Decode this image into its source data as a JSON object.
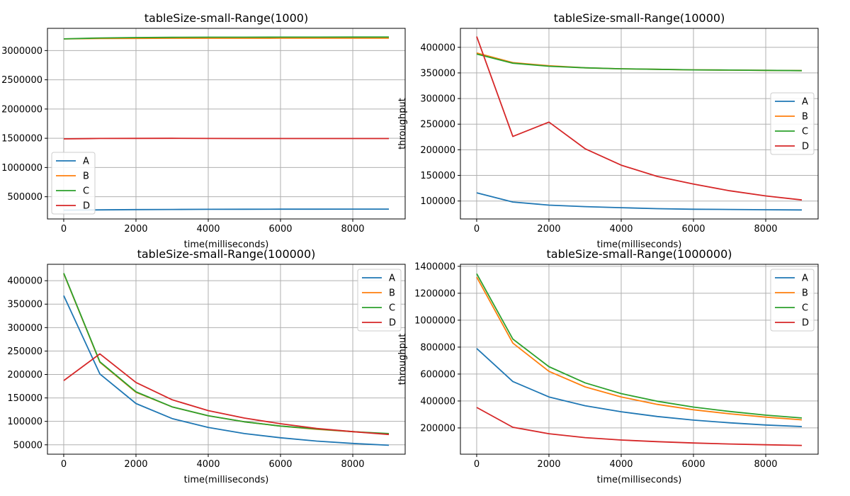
{
  "chart_data": [
    {
      "type": "line",
      "title": "tableSize-small-Range(1000)",
      "xlabel": "time(milliseconds)",
      "ylabel": "",
      "legend": "lower-left",
      "grid": true,
      "xlim": [
        -450,
        9450
      ],
      "ylim": [
        120000,
        3380000
      ],
      "xticks": [
        0,
        2000,
        4000,
        6000,
        8000
      ],
      "xtick_labels": [
        "0",
        "2000",
        "4000",
        "6000",
        "8000"
      ],
      "yticks": [
        500000,
        1000000,
        1500000,
        2000000,
        2500000,
        3000000
      ],
      "ytick_labels": [
        "500000",
        "1000000",
        "1500000",
        "2000000",
        "2500000",
        "3000000"
      ],
      "x": [
        0,
        1000,
        2000,
        3000,
        4000,
        5000,
        6000,
        7000,
        8000,
        9000
      ],
      "series": [
        {
          "name": "A",
          "values": [
            270000,
            275000,
            280000,
            283000,
            285000,
            286000,
            287000,
            287000,
            288000,
            288000
          ]
        },
        {
          "name": "B",
          "values": [
            3200000,
            3205000,
            3208000,
            3210000,
            3210000,
            3210000,
            3211000,
            3211000,
            3211000,
            3211000
          ]
        },
        {
          "name": "C",
          "values": [
            3200000,
            3215000,
            3222000,
            3226000,
            3228000,
            3229000,
            3230000,
            3230000,
            3231000,
            3231000
          ]
        },
        {
          "name": "D",
          "values": [
            1490000,
            1497000,
            1498000,
            1499000,
            1497000,
            1496000,
            1496000,
            1496000,
            1496000,
            1496000
          ]
        }
      ]
    },
    {
      "type": "line",
      "title": "tableSize-small-Range(10000)",
      "xlabel": "time(milliseconds)",
      "ylabel": "throughput",
      "legend": "center-right",
      "grid": true,
      "xlim": [
        -450,
        9450
      ],
      "ylim": [
        65000,
        437000
      ],
      "xticks": [
        0,
        2000,
        4000,
        6000,
        8000
      ],
      "xtick_labels": [
        "0",
        "2000",
        "4000",
        "6000",
        "8000"
      ],
      "yticks": [
        100000,
        150000,
        200000,
        250000,
        300000,
        350000,
        400000
      ],
      "ytick_labels": [
        "100000",
        "150000",
        "200000",
        "250000",
        "300000",
        "350000",
        "400000"
      ],
      "x": [
        0,
        1000,
        2000,
        3000,
        4000,
        5000,
        6000,
        7000,
        8000,
        9000
      ],
      "series": [
        {
          "name": "A",
          "values": [
            116000,
            98000,
            92000,
            89000,
            87000,
            85000,
            84000,
            83500,
            83000,
            82500
          ]
        },
        {
          "name": "B",
          "values": [
            389000,
            370000,
            364000,
            360000,
            358000,
            357000,
            356000,
            355500,
            355000,
            354500
          ]
        },
        {
          "name": "C",
          "values": [
            387000,
            369000,
            363000,
            360000,
            358000,
            357000,
            356000,
            355500,
            355000,
            354500
          ]
        },
        {
          "name": "D",
          "values": [
            421000,
            226000,
            254000,
            202000,
            170000,
            148000,
            133000,
            120000,
            110000,
            102000
          ]
        }
      ]
    },
    {
      "type": "line",
      "title": "tableSize-small-Range(100000)",
      "xlabel": "time(milliseconds)",
      "ylabel": "",
      "legend": "upper-right",
      "grid": true,
      "xlim": [
        -450,
        9450
      ],
      "ylim": [
        30000,
        435000
      ],
      "xticks": [
        0,
        2000,
        4000,
        6000,
        8000
      ],
      "xtick_labels": [
        "0",
        "2000",
        "4000",
        "6000",
        "8000"
      ],
      "yticks": [
        50000,
        100000,
        150000,
        200000,
        250000,
        300000,
        350000,
        400000
      ],
      "ytick_labels": [
        "50000",
        "100000",
        "150000",
        "200000",
        "250000",
        "300000",
        "350000",
        "400000"
      ],
      "x": [
        0,
        1000,
        2000,
        3000,
        4000,
        5000,
        6000,
        7000,
        8000,
        9000
      ],
      "series": [
        {
          "name": "A",
          "values": [
            368000,
            201000,
            138000,
            106000,
            87000,
            74000,
            65000,
            58000,
            53000,
            49000
          ]
        },
        {
          "name": "B",
          "values": [
            415000,
            226000,
            162000,
            131000,
            112000,
            99000,
            90000,
            83000,
            78000,
            73000
          ]
        },
        {
          "name": "C",
          "values": [
            416000,
            227000,
            163000,
            131000,
            112000,
            99000,
            90000,
            84000,
            78000,
            74000
          ]
        },
        {
          "name": "D",
          "values": [
            187000,
            244000,
            183000,
            146000,
            123000,
            107000,
            95000,
            85000,
            78000,
            72000
          ]
        }
      ]
    },
    {
      "type": "line",
      "title": "tableSize-small-Range(1000000)",
      "xlabel": "time(milliseconds)",
      "ylabel": "throughput",
      "legend": "upper-right",
      "grid": true,
      "xlim": [
        -450,
        9450
      ],
      "ylim": [
        5000,
        1415000
      ],
      "xticks": [
        0,
        2000,
        4000,
        6000,
        8000
      ],
      "xtick_labels": [
        "0",
        "2000",
        "4000",
        "6000",
        "8000"
      ],
      "yticks": [
        200000,
        400000,
        600000,
        800000,
        1000000,
        1200000,
        1400000
      ],
      "ytick_labels": [
        "200000",
        "400000",
        "600000",
        "800000",
        "1000000",
        "1200000",
        "1400000"
      ],
      "x": [
        0,
        1000,
        2000,
        3000,
        4000,
        5000,
        6000,
        7000,
        8000,
        9000
      ],
      "series": [
        {
          "name": "A",
          "values": [
            790000,
            545000,
            430000,
            365000,
            320000,
            285000,
            258000,
            238000,
            222000,
            210000
          ]
        },
        {
          "name": "B",
          "values": [
            1320000,
            830000,
            620000,
            505000,
            430000,
            375000,
            335000,
            305000,
            280000,
            260000
          ]
        },
        {
          "name": "C",
          "values": [
            1345000,
            860000,
            655000,
            535000,
            455000,
            398000,
            355000,
            322000,
            295000,
            274000
          ]
        },
        {
          "name": "D",
          "values": [
            352000,
            205000,
            157000,
            128000,
            110000,
            98000,
            88000,
            81000,
            75000,
            70000
          ]
        }
      ]
    }
  ],
  "colors": {
    "A": "#1f77b4",
    "B": "#ff7f0e",
    "C": "#2ca02c",
    "D": "#d62728"
  }
}
